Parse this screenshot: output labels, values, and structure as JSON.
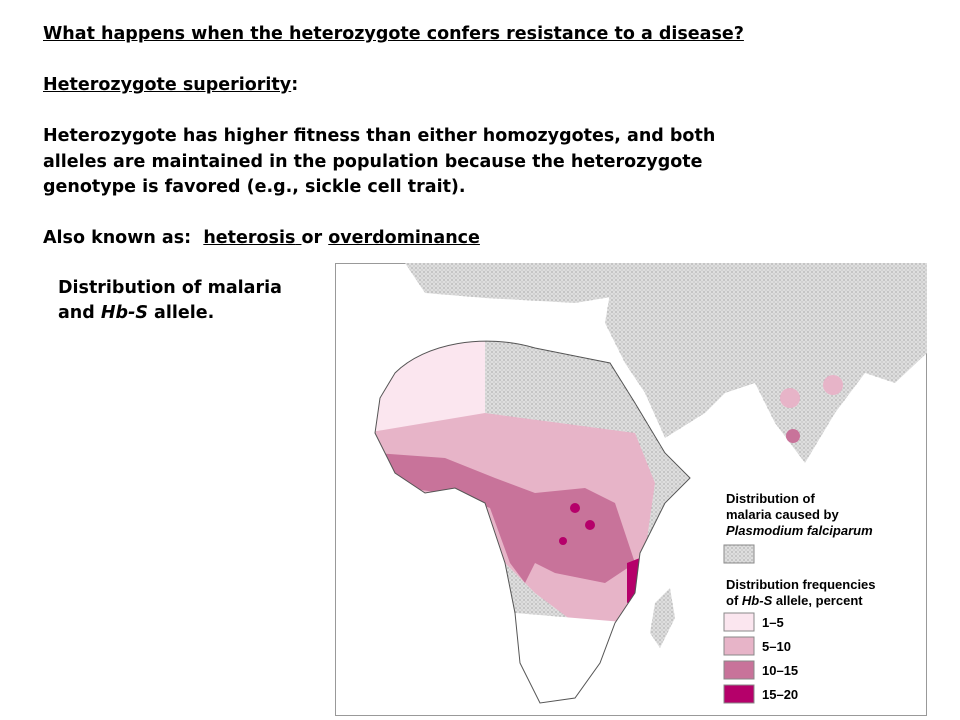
{
  "heading": "What happens when the heterozygote confers resistance to a disease?",
  "term": "Heterozygote superiority",
  "term_punct": ":",
  "definition": [
    "Heterozygote has higher fitness than either homozygotes, and both",
    "alleles are maintained in the population because the heterozygote",
    "genotype is favored (e.g., sickle cell trait)."
  ],
  "aka_label": "Also known as:",
  "aka_terms": [
    "heterosis",
    "overdominance"
  ],
  "aka_joiner": "or",
  "caption": {
    "before": "Distribution of malaria and",
    "italic": "Hb-S",
    "after": "allele."
  },
  "legend": {
    "malaria_title": [
      "Distribution of",
      "malaria caused by"
    ],
    "species": "Plasmodium falciparum",
    "freq_title": "Distribution frequencies",
    "freq_of": "of",
    "allele": "Hb-S",
    "freq_end": "allele, percent",
    "ranges": [
      "1–5",
      "5–10",
      "10–15",
      "15–20"
    ]
  }
}
